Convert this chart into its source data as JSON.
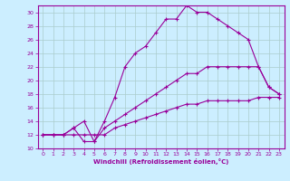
{
  "xlabel": "Windchill (Refroidissement éolien,°C)",
  "background_color": "#cceeff",
  "line_color": "#990099",
  "grid_color": "#aacccc",
  "xlim": [
    -0.5,
    23.5
  ],
  "ylim": [
    10,
    31
  ],
  "xticks": [
    0,
    1,
    2,
    3,
    4,
    5,
    6,
    7,
    8,
    9,
    10,
    11,
    12,
    13,
    14,
    15,
    16,
    17,
    18,
    19,
    20,
    21,
    22,
    23
  ],
  "yticks": [
    10,
    12,
    14,
    16,
    18,
    20,
    22,
    24,
    26,
    28,
    30
  ],
  "curve1_x": [
    0,
    1,
    2,
    3,
    4,
    5,
    6,
    7,
    8,
    9,
    10,
    11,
    12,
    13,
    14,
    15,
    16,
    17,
    18,
    19,
    20,
    21,
    22,
    23
  ],
  "curve1_y": [
    12,
    12,
    12,
    12,
    12,
    12,
    12,
    13,
    13.5,
    14,
    14.5,
    15,
    15.5,
    16,
    16.5,
    16.5,
    17,
    17,
    17,
    17,
    17,
    17.5,
    17.5,
    17.5
  ],
  "curve2_x": [
    0,
    1,
    2,
    3,
    4,
    5,
    6,
    7,
    8,
    9,
    10,
    11,
    12,
    13,
    14,
    15,
    16,
    17,
    18,
    19,
    20,
    21,
    22,
    23
  ],
  "curve2_y": [
    12,
    12,
    12,
    13,
    11,
    11,
    13,
    14,
    15,
    16,
    17,
    18,
    19,
    20,
    21,
    21,
    22,
    22,
    22,
    22,
    22,
    22,
    19,
    18
  ],
  "curve3_x": [
    0,
    1,
    2,
    3,
    4,
    5,
    6,
    7,
    8,
    9,
    10,
    11,
    12,
    13,
    14,
    15,
    16,
    17,
    18,
    19,
    20,
    21,
    22,
    23
  ],
  "curve3_y": [
    12,
    12,
    12,
    13,
    14,
    11,
    14,
    17.5,
    22,
    24,
    25,
    27,
    29,
    29,
    31,
    30,
    30,
    29,
    28,
    27,
    26,
    22,
    19,
    18
  ]
}
